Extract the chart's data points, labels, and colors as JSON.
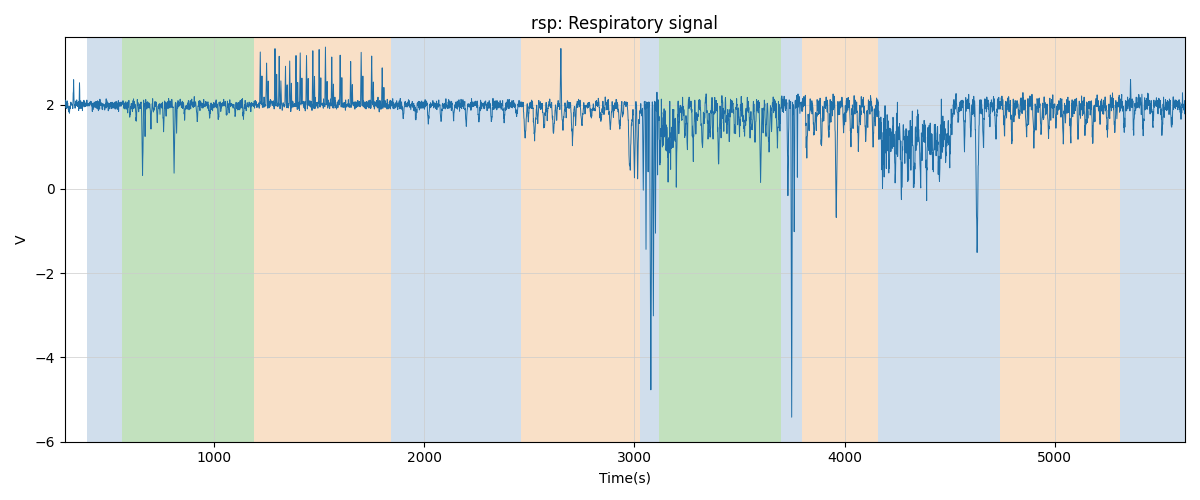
{
  "title": "rsp: Respiratory signal",
  "xlabel": "Time(s)",
  "ylabel": "V",
  "ylim": [
    -6.0,
    3.6
  ],
  "xlim": [
    290,
    5620
  ],
  "yticks": [
    -6,
    -4,
    -2,
    0,
    2
  ],
  "xticks": [
    1000,
    2000,
    3000,
    4000,
    5000
  ],
  "line_color": "#1f6fa8",
  "line_width": 0.7,
  "title_fontsize": 12,
  "label_fontsize": 10,
  "bands": [
    {
      "xmin": 395,
      "xmax": 560,
      "color": "#aac4de",
      "alpha": 0.55
    },
    {
      "xmin": 560,
      "xmax": 1190,
      "color": "#90c98a",
      "alpha": 0.55
    },
    {
      "xmin": 1190,
      "xmax": 1840,
      "color": "#f5c899",
      "alpha": 0.55
    },
    {
      "xmin": 1840,
      "xmax": 2460,
      "color": "#aac4de",
      "alpha": 0.55
    },
    {
      "xmin": 2460,
      "xmax": 3025,
      "color": "#f5c899",
      "alpha": 0.55
    },
    {
      "xmin": 3025,
      "xmax": 3115,
      "color": "#aac4de",
      "alpha": 0.55
    },
    {
      "xmin": 3115,
      "xmax": 3700,
      "color": "#90c98a",
      "alpha": 0.55
    },
    {
      "xmin": 3700,
      "xmax": 3800,
      "color": "#aac4de",
      "alpha": 0.55
    },
    {
      "xmin": 3800,
      "xmax": 4160,
      "color": "#f5c899",
      "alpha": 0.55
    },
    {
      "xmin": 4160,
      "xmax": 4740,
      "color": "#aac4de",
      "alpha": 0.55
    },
    {
      "xmin": 4740,
      "xmax": 5310,
      "color": "#f5c899",
      "alpha": 0.55
    },
    {
      "xmin": 5310,
      "xmax": 5620,
      "color": "#aac4de",
      "alpha": 0.55
    }
  ]
}
